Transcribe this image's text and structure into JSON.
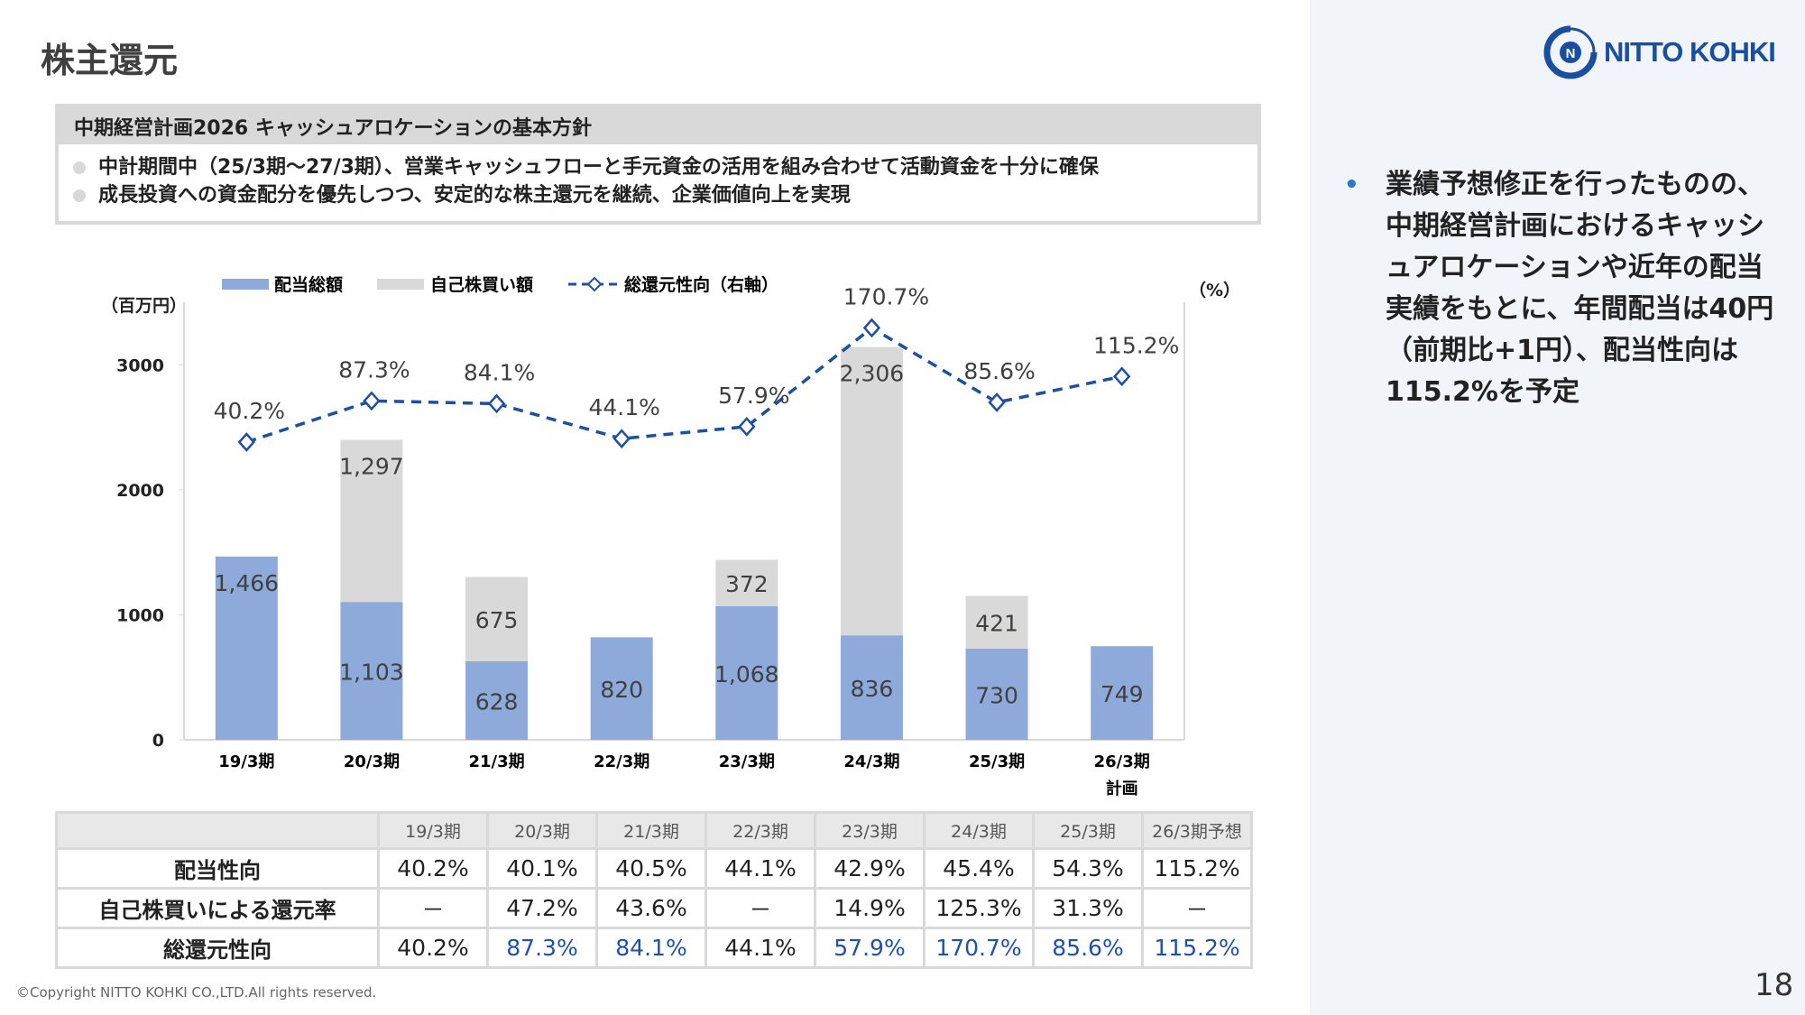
{
  "title": "株主還元",
  "logo": {
    "text": "NITTO KOHKI"
  },
  "policy": {
    "heading": "中期経営計画2026 キャッシュアロケーションの基本方針",
    "items": [
      "中計期間中（25/3期～27/3期）、営業キャッシュフローと手元資金の活用を組み合わせて活動資金を十分に確保",
      "成長投資への資金配分を優先しつつ、安定的な株主還元を継続、企業価値向上を実現"
    ]
  },
  "side_note": {
    "bullet": "•",
    "text": "業績予想修正を行ったものの、中期経営計画におけるキャッシュアロケーションや近年の配当実績をもとに、年間配当は40円（前期比+1円）、配当性向は115.2%を予定"
  },
  "chart_data": {
    "type": "bar",
    "stacked": true,
    "categories": [
      "19/3期",
      "20/3期",
      "21/3期",
      "22/3期",
      "23/3期",
      "24/3期",
      "25/3期",
      "26/3期"
    ],
    "category_sub": [
      "",
      "",
      "",
      "",
      "",
      "",
      "",
      "計画"
    ],
    "series": [
      {
        "name": "配当総額",
        "color": "#8eaadb",
        "values": [
          1466,
          1103,
          628,
          820,
          1068,
          836,
          730,
          749
        ]
      },
      {
        "name": "自己株買い額",
        "color": "#d9d9d9",
        "values": [
          0,
          1297,
          675,
          0,
          372,
          2306,
          421,
          0
        ]
      },
      {
        "name": "総還元性向（右軸）",
        "color": "#1f4fa0",
        "axis": "right",
        "values": [
          40.2,
          87.3,
          84.1,
          44.1,
          57.9,
          170.7,
          85.6,
          115.2
        ]
      }
    ],
    "bar_labels": [
      [
        "1,466",
        "1,103",
        "628",
        "820",
        "1,068",
        "836",
        "730",
        "749"
      ],
      [
        "",
        "1,297",
        "675",
        "",
        "372",
        "2,306",
        "421",
        ""
      ]
    ],
    "line_labels": [
      "40.2%",
      "87.3%",
      "84.1%",
      "44.1%",
      "57.9%",
      "170.7%",
      "85.6%",
      "115.2%"
    ],
    "ylabel": "（百万円）",
    "ylabel_right": "（%）",
    "yticks": [
      "0",
      "1000",
      "2000",
      "3000"
    ],
    "ylim": [
      0,
      3500
    ],
    "ylim_right": [
      -300,
      200
    ],
    "legend_position": "top"
  },
  "table": {
    "headers": [
      "",
      "19/3期",
      "20/3期",
      "21/3期",
      "22/3期",
      "23/3期",
      "24/3期",
      "25/3期",
      "26/3期予想"
    ],
    "rows": [
      {
        "label": "配当性向",
        "cells": [
          "40.2%",
          "40.1%",
          "40.5%",
          "44.1%",
          "42.9%",
          "45.4%",
          "54.3%",
          "115.2%"
        ]
      },
      {
        "label": "自己株買いによる還元率",
        "cells": [
          "－",
          "47.2%",
          "43.6%",
          "－",
          "14.9%",
          "125.3%",
          "31.3%",
          "－"
        ]
      },
      {
        "label": "総還元性向",
        "cells": [
          "40.2%",
          "87.3%",
          "84.1%",
          "44.1%",
          "57.9%",
          "170.7%",
          "85.6%",
          "115.2%"
        ],
        "highlight": [
          false,
          true,
          true,
          false,
          true,
          true,
          true,
          true
        ],
        "highlight_color": "#1f4fb0"
      }
    ]
  },
  "footer": {
    "copyright": "©Copyright NITTO KOHKI CO.,LTD.All rights reserved.",
    "page": "18"
  }
}
